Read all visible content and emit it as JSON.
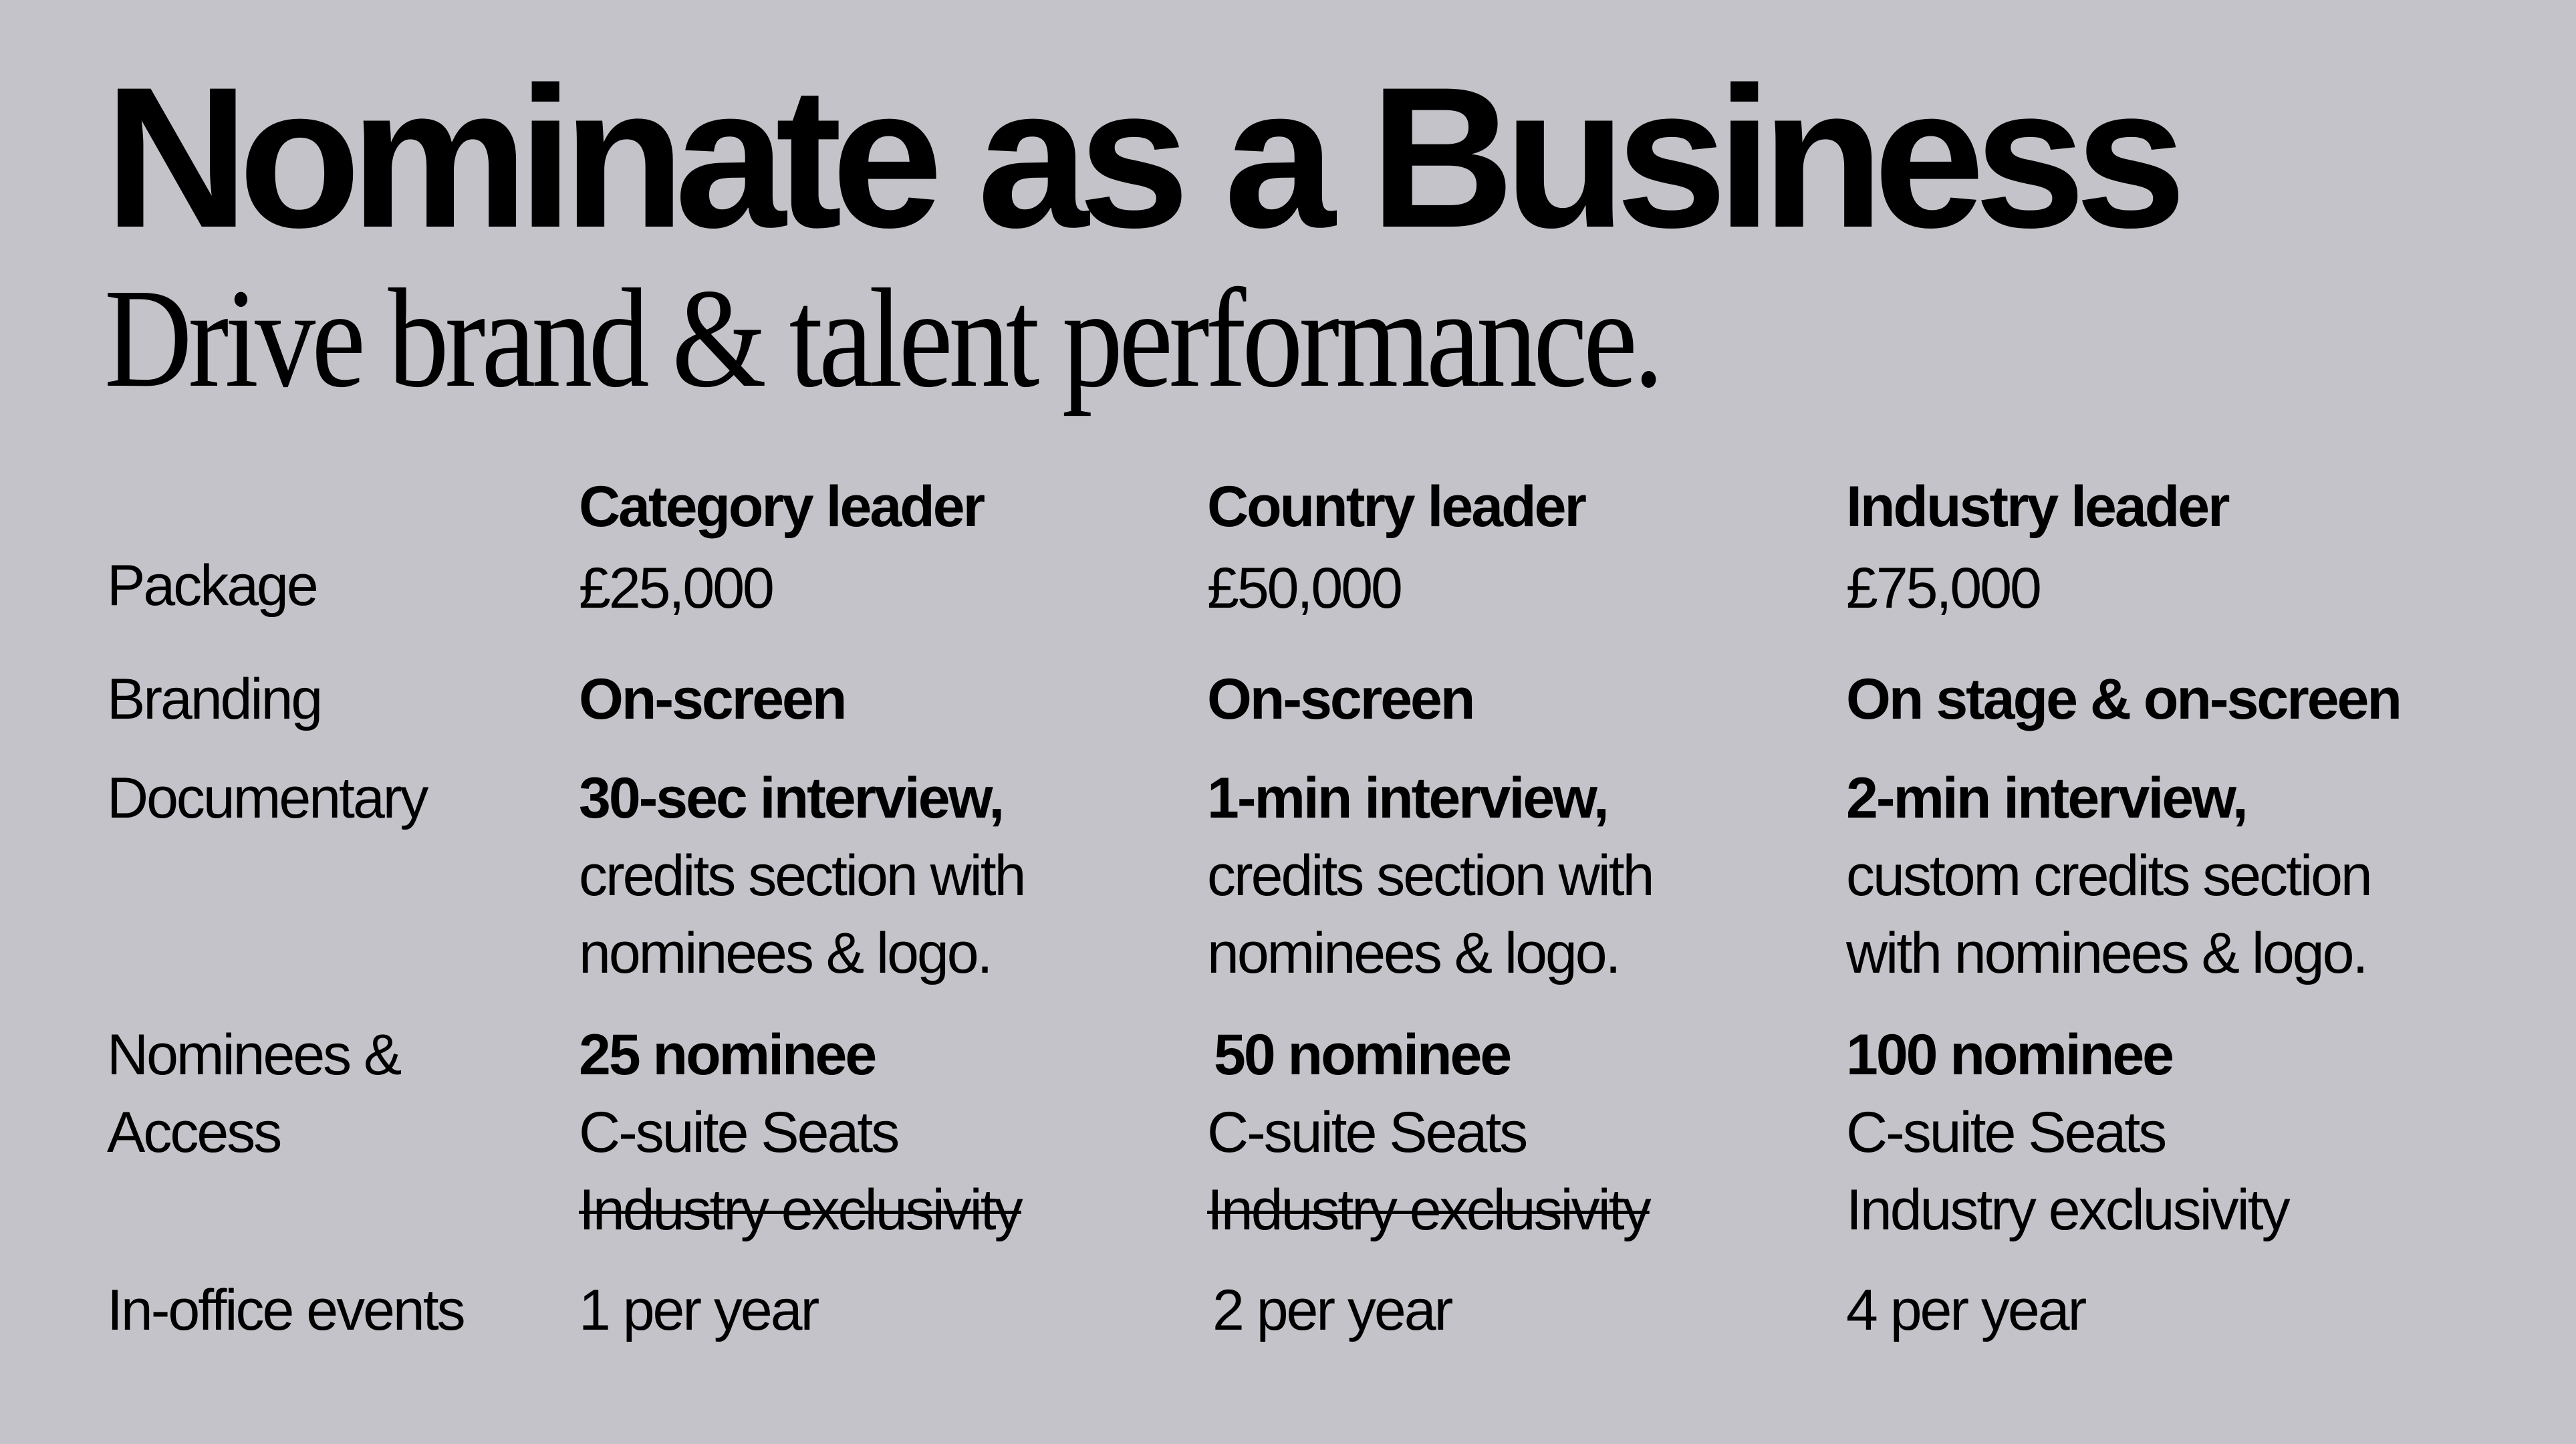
{
  "title": "Nominate as a Business",
  "subtitle": "Drive brand & talent performance.",
  "rows": {
    "package": "Package",
    "branding": "Branding",
    "documentary": "Documentary",
    "nominees_access": [
      "Nominees &",
      "Access"
    ],
    "events": "In-office events"
  },
  "tiers": [
    {
      "name": "Category leader",
      "price": "£25,000",
      "branding": "On-screen",
      "documentary_bold": "30-sec interview,",
      "documentary_lines": [
        "credits section with",
        "nominees & logo."
      ],
      "nominees": "25 nominee",
      "seats": "C-suite Seats",
      "exclusivity": "Industry exclusivity",
      "exclusivity_included": false,
      "events": "1 per year"
    },
    {
      "name": "Country leader",
      "price": "£50,000",
      "branding": "On-screen",
      "documentary_bold": "1-min interview,",
      "documentary_lines": [
        "credits section with",
        "nominees & logo."
      ],
      "nominees": "50 nominee",
      "seats": "C-suite Seats",
      "exclusivity": "Industry exclusivity",
      "exclusivity_included": false,
      "events": "2 per year"
    },
    {
      "name": "Industry leader",
      "price": "£75,000",
      "branding": "On stage & on-screen",
      "documentary_bold": "2-min interview,",
      "documentary_lines": [
        "custom credits section",
        "with nominees & logo."
      ],
      "nominees": "100 nominee",
      "seats": "C-suite Seats",
      "exclusivity": "Industry exclusivity",
      "exclusivity_included": true,
      "events": "4 per year"
    }
  ]
}
